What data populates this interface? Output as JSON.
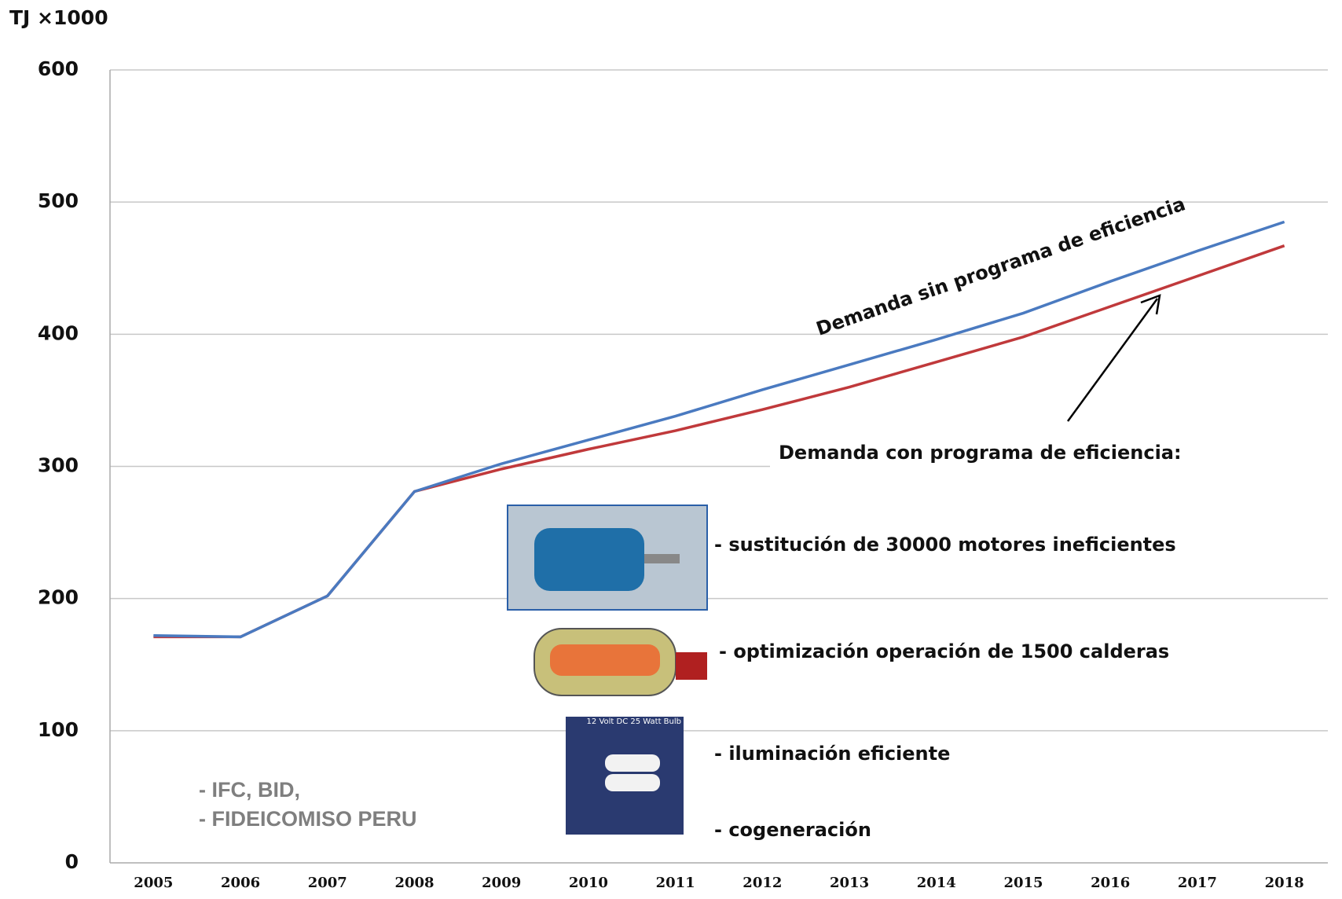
{
  "chart_data": {
    "type": "line",
    "y_axis_label": "TJ ×1000",
    "categories": [
      "2005",
      "2006",
      "2007",
      "2008",
      "2009",
      "2010",
      "2011",
      "2012",
      "2013",
      "2014",
      "2015",
      "2016",
      "2017",
      "2018"
    ],
    "series": [
      {
        "name": "Demanda sin programa de eficiencia",
        "color": "#4a7ac0",
        "values": [
          172,
          171,
          202,
          281,
          302,
          320,
          338,
          358,
          377,
          396,
          416,
          440,
          463,
          485
        ]
      },
      {
        "name": "Demanda  con programa de eficiencia:",
        "color": "#c0393b",
        "values": [
          171,
          171,
          202,
          281,
          298,
          313,
          327,
          343,
          360,
          379,
          398,
          421,
          444,
          467
        ]
      }
    ],
    "ylim": [
      0,
      600
    ],
    "yticks": [
      0,
      100,
      200,
      300,
      400,
      500,
      600
    ],
    "grid": true,
    "annotations": [
      "- sustitución de 30000 motores ineficientes",
      "- optimización operación de  1500 calderas",
      "- iluminación eficiente",
      "- cogeneración",
      "- IFC, BID,",
      "- FIDEICOMISO PERU",
      "12 Volt DC 25 Watt Bulb"
    ]
  }
}
